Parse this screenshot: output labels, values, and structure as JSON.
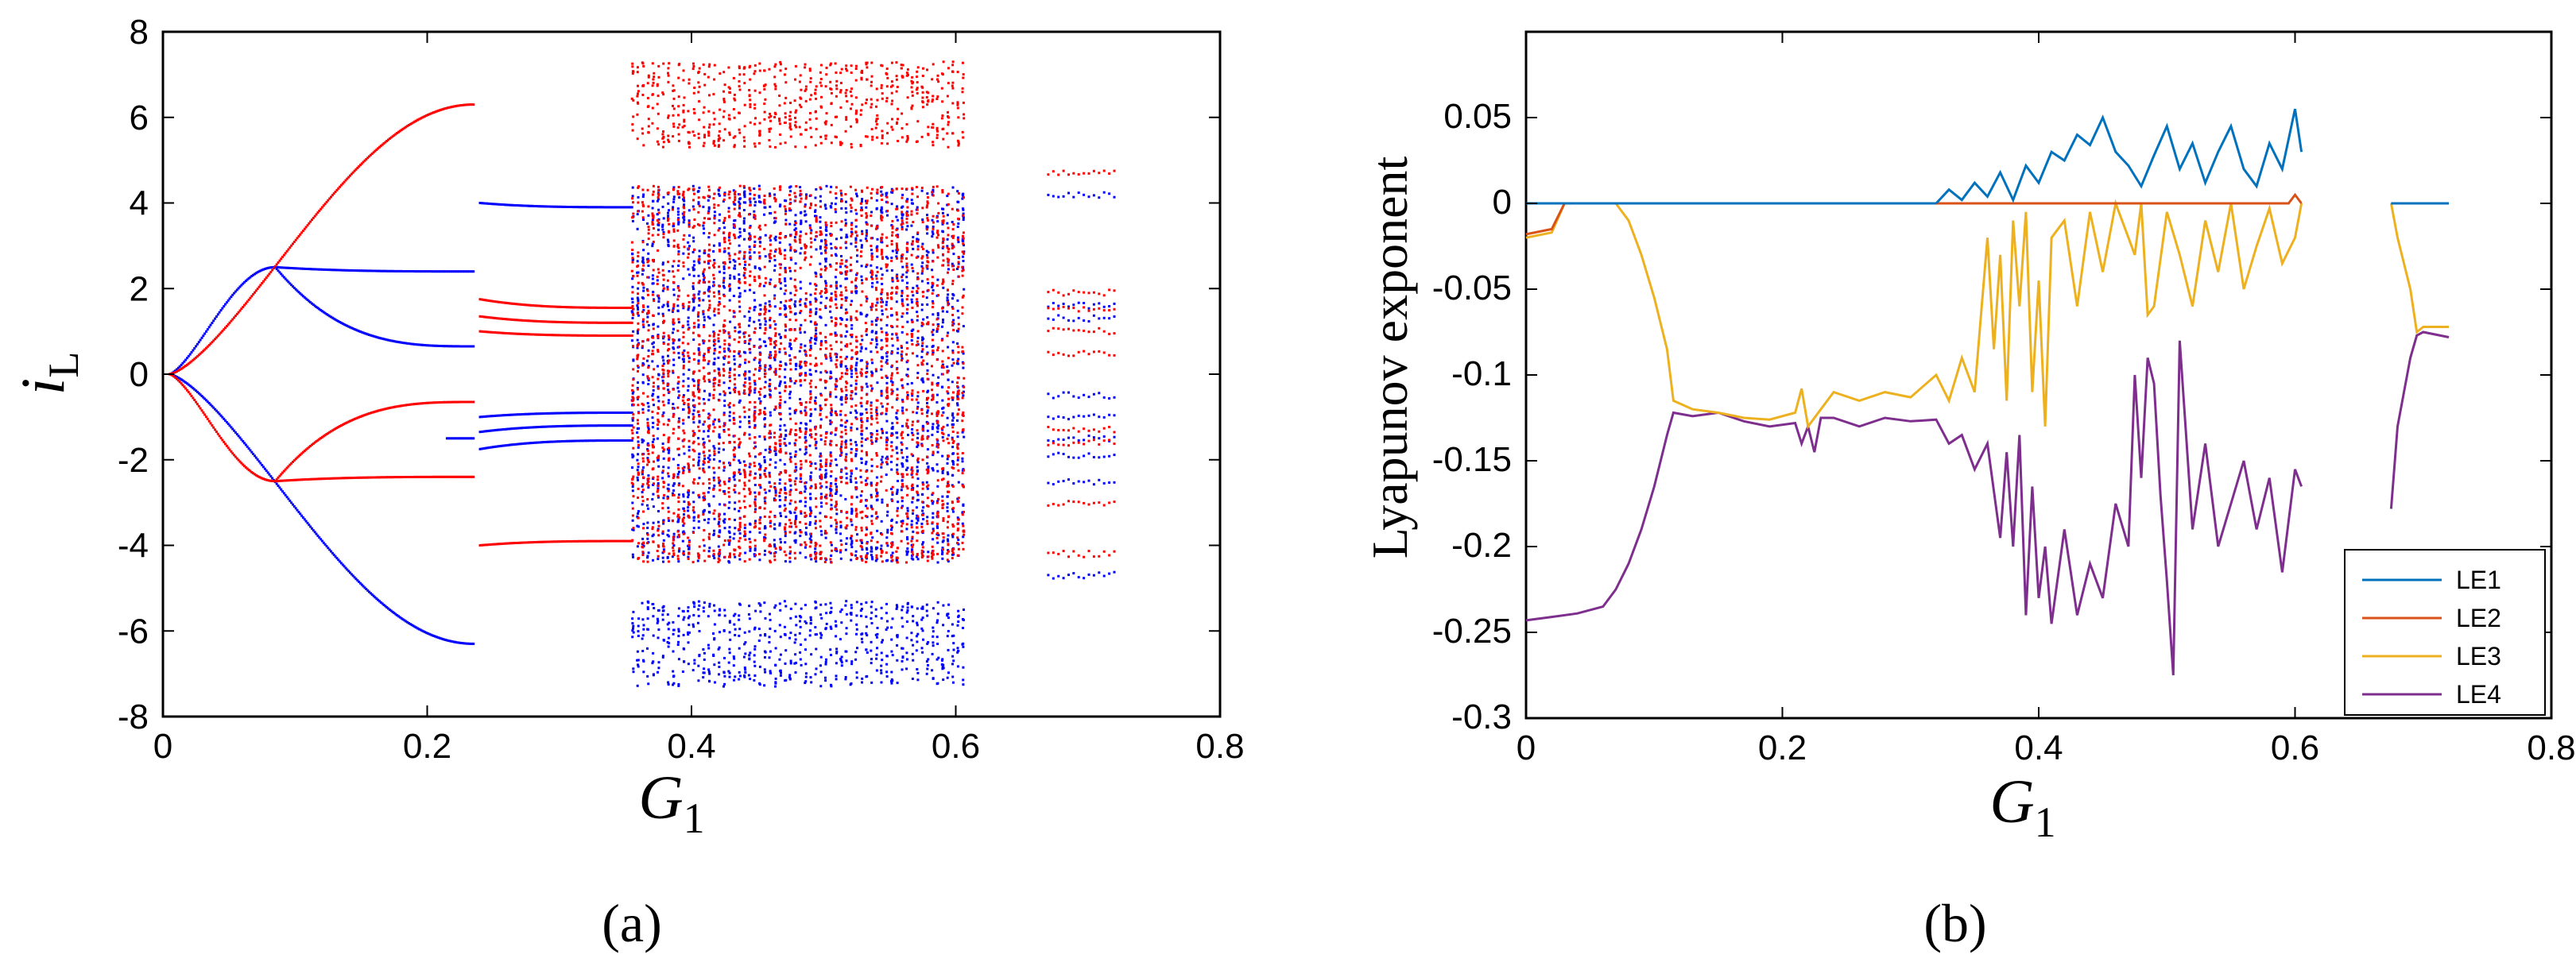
{
  "chart_data": [
    {
      "panel_label": "(a)",
      "type": "scatter",
      "description_type": "bifurcation diagram",
      "ylabel_main": "i",
      "ylabel_sub": "L",
      "xlabel_main": "G",
      "xlabel_sub": "1",
      "xlim": [
        0,
        0.8
      ],
      "ylim": [
        -8,
        8
      ],
      "x_ticks": [
        0,
        0.2,
        0.4,
        0.6,
        0.8
      ],
      "x_tick_labels": [
        "0",
        "0.2",
        "0.4",
        "0.6",
        "0.8"
      ],
      "y_ticks": [
        -8,
        -6,
        -4,
        -2,
        0,
        2,
        4,
        6,
        8
      ],
      "y_tick_labels": [
        "-8",
        "-6",
        "-4",
        "-2",
        "0",
        "2",
        "4",
        "6",
        "8"
      ],
      "series": [
        {
          "name": "blue",
          "color": "#0000ff",
          "periodic_branches": [
            {
              "x_range": [
                0.005,
                0.085
              ],
              "y_start": 0,
              "y_end": 2.5
            },
            {
              "x_range": [
                0.085,
                0.235
              ],
              "y_start": 2.5,
              "y_end": 2.4
            },
            {
              "x_range": [
                0.085,
                0.235
              ],
              "y_start": 2.5,
              "y_end": 0.65
            },
            {
              "x_range": [
                0.005,
                0.235
              ],
              "y_start": 0,
              "y_end": -6.3
            },
            {
              "x_range": [
                0.215,
                0.235
              ],
              "y_start": -1.5,
              "y_end": -1.5
            },
            {
              "x_range": [
                0.24,
                0.355
              ],
              "y_start": 4.0,
              "y_end": 3.9
            },
            {
              "x_range": [
                0.24,
                0.355
              ],
              "y_start": -1.0,
              "y_end": -0.9
            },
            {
              "x_range": [
                0.24,
                0.355
              ],
              "y_start": -1.35,
              "y_end": -1.2
            },
            {
              "x_range": [
                0.24,
                0.355
              ],
              "y_start": -1.75,
              "y_end": -1.55
            }
          ],
          "chaotic_bands": [
            {
              "x_range": [
                0.355,
                0.605
              ],
              "y_ranges": [
                [
                  -7.3,
                  -5.3
                ],
                [
                  -4.4,
                  4.4
                ]
              ]
            },
            {
              "x_range": [
                0.67,
                0.72
              ],
              "y_levels": [
                4.2,
                1.6,
                1.3,
                -0.5,
                -1.0,
                -1.5,
                -1.9,
                -2.5,
                -4.7
              ]
            }
          ]
        },
        {
          "name": "red",
          "color": "#ff0000",
          "periodic_branches": [
            {
              "x_range": [
                0.005,
                0.235
              ],
              "y_start": 0,
              "y_end": 6.3
            },
            {
              "x_range": [
                0.005,
                0.085
              ],
              "y_start": 0,
              "y_end": -2.5
            },
            {
              "x_range": [
                0.085,
                0.235
              ],
              "y_start": -2.5,
              "y_end": -2.4
            },
            {
              "x_range": [
                0.085,
                0.235
              ],
              "y_start": -2.5,
              "y_end": -0.65
            },
            {
              "x_range": [
                0.24,
                0.355
              ],
              "y_start": -4.0,
              "y_end": -3.9
            },
            {
              "x_range": [
                0.24,
                0.355
              ],
              "y_start": 1.0,
              "y_end": 0.9
            },
            {
              "x_range": [
                0.24,
                0.355
              ],
              "y_start": 1.35,
              "y_end": 1.2
            },
            {
              "x_range": [
                0.24,
                0.355
              ],
              "y_start": 1.75,
              "y_end": 1.55
            }
          ],
          "chaotic_bands": [
            {
              "x_range": [
                0.355,
                0.605
              ],
              "y_ranges": [
                [
                  5.3,
                  7.3
                ],
                [
                  -4.4,
                  4.4
                ]
              ]
            },
            {
              "x_range": [
                0.67,
                0.72
              ],
              "y_levels": [
                4.7,
                1.9,
                1.5,
                1.0,
                0.5,
                -1.3,
                -1.6,
                -3.0,
                -4.2
              ]
            }
          ]
        }
      ]
    },
    {
      "panel_label": "(b)",
      "type": "line",
      "ylabel": "Lyapunov exponent",
      "xlabel_main": "G",
      "xlabel_sub": "1",
      "xlim": [
        0,
        0.8
      ],
      "ylim": [
        -0.3,
        0.1
      ],
      "x_ticks": [
        0,
        0.2,
        0.4,
        0.6,
        0.8
      ],
      "x_tick_labels": [
        "0",
        "0.2",
        "0.4",
        "0.6",
        "0.8"
      ],
      "y_ticks": [
        0.05,
        0,
        -0.05,
        -0.1,
        -0.15,
        -0.2,
        -0.25,
        -0.3
      ],
      "y_tick_labels": [
        "0.05",
        "0",
        "-0.05",
        "-0.1",
        "-0.15",
        "-0.2",
        "-0.25",
        "-0.3"
      ],
      "legend_position": "bottom-right",
      "gap_x_range": [
        0.605,
        0.675
      ],
      "series": [
        {
          "name": "LE1",
          "color": "#0072bd",
          "segments": [
            {
              "x": [
                0,
                0.32
              ],
              "y": [
                0,
                0
              ]
            },
            {
              "x": [
                0.32,
                0.33,
                0.34,
                0.35,
                0.36,
                0.37,
                0.38,
                0.39,
                0.4,
                0.41,
                0.42,
                0.43,
                0.44,
                0.45,
                0.46,
                0.47,
                0.48,
                0.49,
                0.5,
                0.51,
                0.52,
                0.53,
                0.54,
                0.55,
                0.56,
                0.57,
                0.58,
                0.59,
                0.6,
                0.605
              ],
              "y": [
                0,
                0.008,
                0.002,
                0.012,
                0.004,
                0.018,
                0.002,
                0.022,
                0.012,
                0.03,
                0.025,
                0.04,
                0.034,
                0.05,
                0.03,
                0.022,
                0.01,
                0.028,
                0.045,
                0.02,
                0.035,
                0.012,
                0.03,
                0.045,
                0.02,
                0.01,
                0.035,
                0.02,
                0.055,
                0.03
              ]
            },
            {
              "x": [
                0.675,
                0.72
              ],
              "y": [
                0,
                0
              ]
            }
          ]
        },
        {
          "name": "LE2",
          "color": "#d95319",
          "segments": [
            {
              "x": [
                0,
                0.02,
                0.03
              ],
              "y": [
                -0.018,
                -0.015,
                0
              ]
            },
            {
              "x": [
                0.03,
                0.595,
                0.6,
                0.605
              ],
              "y": [
                0,
                0,
                0.005,
                0
              ]
            },
            {
              "x": [
                0.675,
                0.72
              ],
              "y": [
                0,
                0
              ]
            }
          ]
        },
        {
          "name": "LE3",
          "color": "#edb120",
          "segments": [
            {
              "x": [
                0,
                0.02,
                0.03
              ],
              "y": [
                -0.02,
                -0.017,
                0
              ]
            },
            {
              "x": [
                0.03,
                0.07
              ],
              "y": [
                0,
                0
              ]
            },
            {
              "x": [
                0.07,
                0.08,
                0.09,
                0.1,
                0.11,
                0.115,
                0.13,
                0.15,
                0.17,
                0.19,
                0.21,
                0.215,
                0.22,
                0.23,
                0.24,
                0.26,
                0.28,
                0.3,
                0.32,
                0.33,
                0.34,
                0.35,
                0.355,
                0.36,
                0.365,
                0.37,
                0.375,
                0.38,
                0.385,
                0.39,
                0.395,
                0.4,
                0.405,
                0.41,
                0.42,
                0.43,
                0.44,
                0.45,
                0.46,
                0.47,
                0.475,
                0.48,
                0.485,
                0.49,
                0.5,
                0.51,
                0.52,
                0.53,
                0.54,
                0.55,
                0.56,
                0.57,
                0.58,
                0.59,
                0.6,
                0.605
              ],
              "y": [
                0,
                -0.01,
                -0.03,
                -0.055,
                -0.085,
                -0.115,
                -0.12,
                -0.122,
                -0.125,
                -0.126,
                -0.122,
                -0.108,
                -0.13,
                -0.12,
                -0.11,
                -0.115,
                -0.11,
                -0.113,
                -0.1,
                -0.115,
                -0.09,
                -0.11,
                -0.065,
                -0.02,
                -0.085,
                -0.03,
                -0.115,
                -0.01,
                -0.06,
                -0.005,
                -0.11,
                -0.045,
                -0.13,
                -0.02,
                -0.01,
                -0.06,
                -0.005,
                -0.04,
                0,
                -0.02,
                -0.03,
                0,
                -0.065,
                -0.06,
                -0.005,
                -0.03,
                -0.06,
                -0.01,
                -0.04,
                0,
                -0.05,
                -0.025,
                -0.003,
                -0.035,
                -0.02,
                0
              ]
            },
            {
              "x": [
                0.675,
                0.68,
                0.69,
                0.695,
                0.7,
                0.72
              ],
              "y": [
                0,
                -0.02,
                -0.05,
                -0.075,
                -0.072,
                -0.072
              ]
            }
          ]
        },
        {
          "name": "LE4",
          "color": "#7e2f8e",
          "segments": [
            {
              "x": [
                0,
                0.02,
                0.04,
                0.06,
                0.07,
                0.08,
                0.09,
                0.1,
                0.11,
                0.115,
                0.13,
                0.15,
                0.17,
                0.19,
                0.21,
                0.215,
                0.22,
                0.225,
                0.23,
                0.24,
                0.26,
                0.28,
                0.3,
                0.32,
                0.33,
                0.34,
                0.35,
                0.36,
                0.37,
                0.375,
                0.38,
                0.385,
                0.39,
                0.395,
                0.4,
                0.405,
                0.41,
                0.42,
                0.43,
                0.44,
                0.45,
                0.46,
                0.47,
                0.475,
                0.48,
                0.485,
                0.49,
                0.495,
                0.5,
                0.505,
                0.51,
                0.52,
                0.53,
                0.54,
                0.55,
                0.56,
                0.57,
                0.58,
                0.59,
                0.6,
                0.605
              ],
              "y": [
                -0.243,
                -0.241,
                -0.239,
                -0.235,
                -0.225,
                -0.21,
                -0.19,
                -0.165,
                -0.135,
                -0.122,
                -0.124,
                -0.122,
                -0.127,
                -0.13,
                -0.128,
                -0.14,
                -0.13,
                -0.145,
                -0.125,
                -0.125,
                -0.13,
                -0.125,
                -0.127,
                -0.126,
                -0.14,
                -0.135,
                -0.155,
                -0.14,
                -0.195,
                -0.145,
                -0.2,
                -0.135,
                -0.24,
                -0.165,
                -0.23,
                -0.2,
                -0.245,
                -0.19,
                -0.24,
                -0.21,
                -0.23,
                -0.175,
                -0.2,
                -0.1,
                -0.16,
                -0.09,
                -0.105,
                -0.17,
                -0.22,
                -0.275,
                -0.08,
                -0.19,
                -0.14,
                -0.2,
                -0.175,
                -0.15,
                -0.19,
                -0.16,
                -0.215,
                -0.155,
                -0.165
              ]
            },
            {
              "x": [
                0.675,
                0.68,
                0.69,
                0.695,
                0.7,
                0.72
              ],
              "y": [
                -0.178,
                -0.13,
                -0.09,
                -0.077,
                -0.075,
                -0.078
              ]
            }
          ]
        }
      ]
    }
  ]
}
